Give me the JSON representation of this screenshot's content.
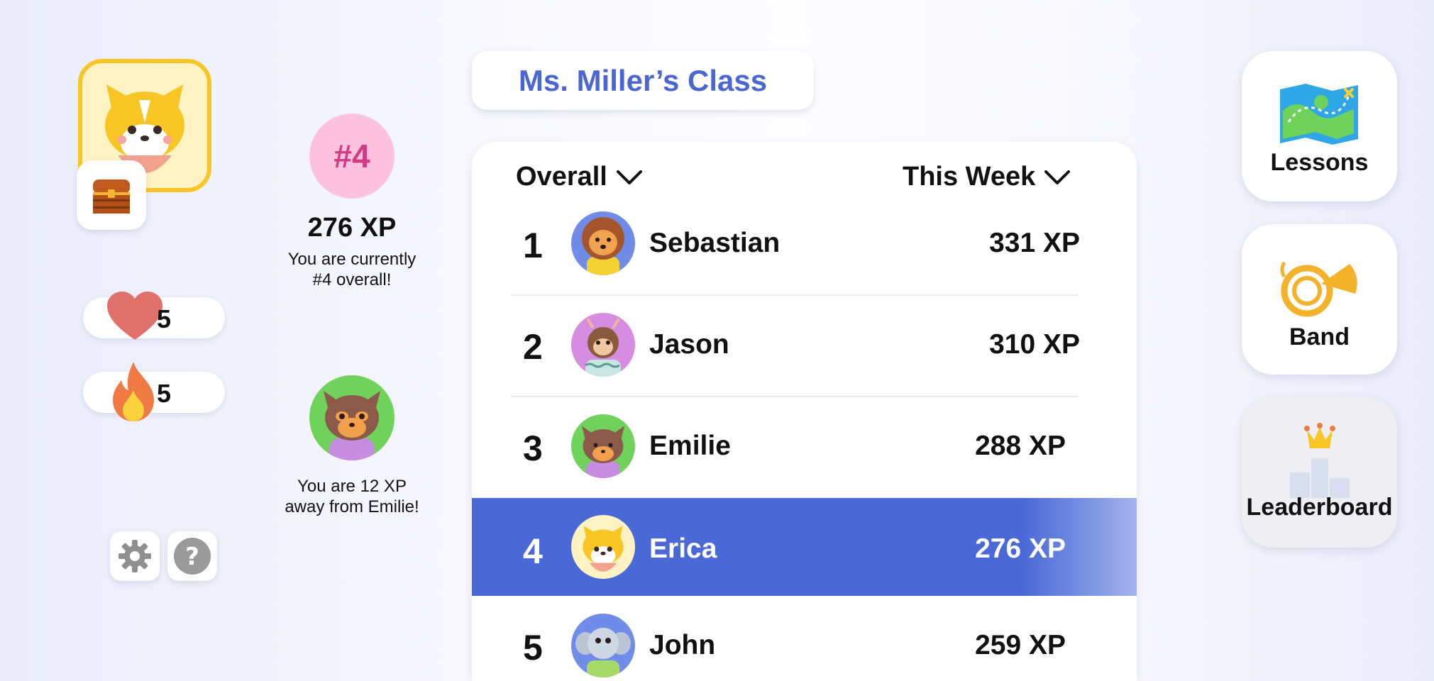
{
  "profile": {
    "avatar": "corgi-avatar",
    "chest": "treasure-chest-icon"
  },
  "stats": {
    "hearts": "5",
    "streak": "5"
  },
  "utility": {
    "settings": "gear-icon",
    "help": "question-icon"
  },
  "summary": {
    "rank_badge": "#4",
    "xp_total": "276 XP",
    "rank_message_1": "You are currently",
    "rank_message_2": "#4 overall!",
    "next_message_1": "You are 12 XP",
    "next_message_2": "away from Emilie!"
  },
  "header": {
    "class_title": "Ms. Miller’s Class"
  },
  "filters": {
    "scope": "Overall",
    "period": "This Week"
  },
  "leaderboard": [
    {
      "rank": "1",
      "name": "Sebastian",
      "xp": "331 XP",
      "avatar": "lion-avatar"
    },
    {
      "rank": "2",
      "name": "Jason",
      "xp": "310 XP",
      "avatar": "monkey-avatar"
    },
    {
      "rank": "3",
      "name": "Emilie",
      "xp": "288 XP",
      "avatar": "cat-avatar"
    },
    {
      "rank": "4",
      "name": "Erica",
      "xp": "276 XP",
      "avatar": "corgi-avatar"
    },
    {
      "rank": "5",
      "name": "John",
      "xp": "259 XP",
      "avatar": "elephant-avatar"
    }
  ],
  "nav": {
    "lessons": "Lessons",
    "band": "Band",
    "leaderboard": "Leaderboard"
  },
  "colors": {
    "accent": "#4a69d6",
    "rank_badge_bg": "#fdc3de",
    "rank_badge_text": "#d23a86",
    "profile_border": "#f7c625",
    "heart": "#e0706a"
  }
}
